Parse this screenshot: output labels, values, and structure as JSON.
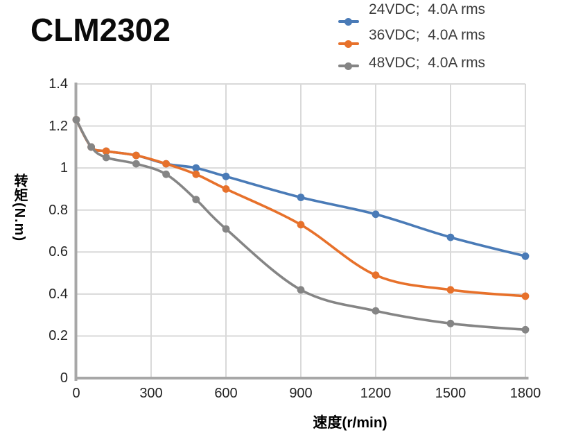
{
  "header": {
    "title": "CLM2302"
  },
  "legend": {
    "items": [
      {
        "label": "24VDC;  4.0A rms",
        "color": "#4A7BB7"
      },
      {
        "label": "36VDC;  4.0A rms",
        "color": "#E7712B"
      },
      {
        "label": "48VDC;  4.0A rms",
        "color": "#858585"
      }
    ]
  },
  "chart_data": {
    "type": "line",
    "title": "CLM2302",
    "xlabel": "速度(r/min)",
    "ylabel": "转矩(N.m)",
    "xlim": [
      0,
      1800
    ],
    "ylim": [
      0,
      1.4
    ],
    "grid": true,
    "legend_position": "top-right",
    "xticks": {
      "values": [
        0,
        300,
        600,
        900,
        1200,
        1500,
        1800
      ],
      "labels": [
        "0",
        "300",
        "600",
        "900",
        "1200",
        "1500",
        "1800"
      ]
    },
    "yticks": {
      "values": [
        0,
        0.2,
        0.4,
        0.6,
        0.8,
        1,
        1.2,
        1.4
      ],
      "labels": [
        "0",
        "0.2",
        "0.4",
        "0.6",
        "0.8",
        "1",
        "1.2",
        "1.4"
      ]
    },
    "x": [
      0,
      60,
      120,
      240,
      360,
      480,
      600,
      900,
      1200,
      1500,
      1800
    ],
    "series": [
      {
        "name": "24VDC;  4.0A rms",
        "color": "#4A7BB7",
        "values": [
          1.23,
          1.1,
          1.08,
          1.06,
          1.02,
          1.0,
          0.96,
          0.86,
          0.78,
          0.67,
          0.58
        ]
      },
      {
        "name": "36VDC;  4.0A rms",
        "color": "#E7712B",
        "values": [
          1.23,
          1.1,
          1.08,
          1.06,
          1.02,
          0.97,
          0.9,
          0.73,
          0.49,
          0.42,
          0.39
        ]
      },
      {
        "name": "48VDC;  4.0A rms",
        "color": "#858585",
        "values": [
          1.23,
          1.1,
          1.05,
          1.02,
          0.97,
          0.85,
          0.71,
          0.42,
          0.32,
          0.26,
          0.23
        ]
      }
    ],
    "style": {
      "grid_color": "#D9D9D9",
      "axis_color": "#A7A7A7",
      "line_width": 3.6,
      "marker_radius": 5.4
    }
  }
}
